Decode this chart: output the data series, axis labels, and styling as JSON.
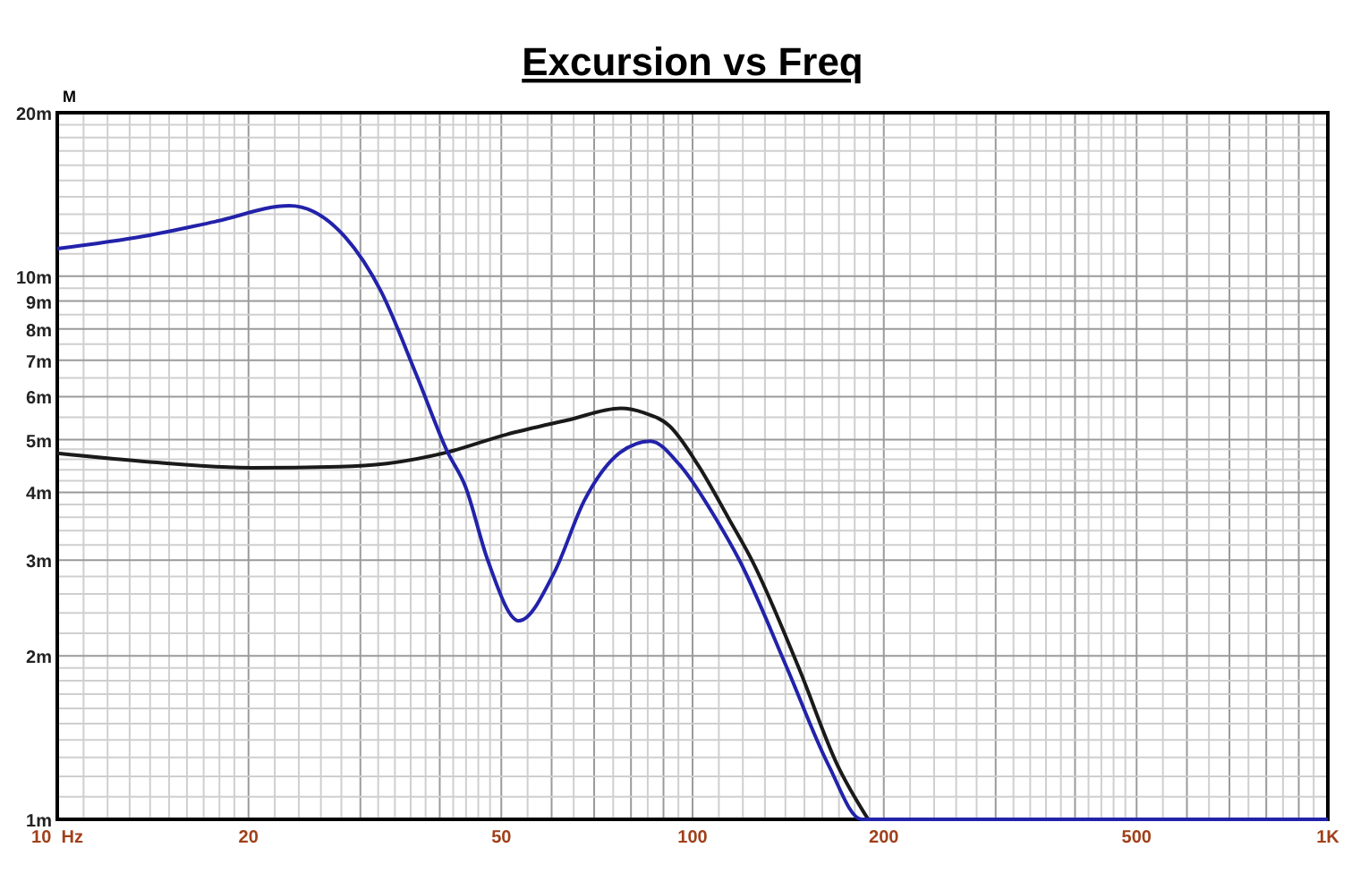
{
  "chart_data": {
    "type": "line",
    "title": "Excursion vs Freq",
    "ylabel": "M",
    "log": "xy",
    "grid": true,
    "line_style": "solid",
    "marker": "none",
    "xlim": [
      10,
      1000
    ],
    "xticks": [
      {
        "value": 10,
        "label": "10  Hz"
      },
      20,
      50,
      100,
      200,
      500,
      {
        "value": 1000,
        "label": "1K"
      }
    ],
    "ylim": [
      1,
      20
    ],
    "yticks": [
      {
        "value": 1,
        "label": "1m"
      },
      {
        "value": 2,
        "label": "2m"
      },
      {
        "value": 3,
        "label": "3m"
      },
      {
        "value": 4,
        "label": "4m"
      },
      {
        "value": 5,
        "label": "5m"
      },
      {
        "value": 6,
        "label": "6m"
      },
      {
        "value": 7,
        "label": "7m"
      },
      {
        "value": 8,
        "label": "8m"
      },
      {
        "value": 9,
        "label": "9m"
      },
      {
        "value": 10,
        "label": "10m"
      },
      {
        "value": 20,
        "label": "20m"
      }
    ],
    "series": [
      {
        "color": "#1a1a1a",
        "x": [
          10,
          14,
          20.2,
          27.8,
          33,
          41.1,
          50.9,
          63.5,
          77.1,
          84,
          92,
          102,
          114,
          124,
          147,
          169,
          189
        ],
        "values": [
          4.72,
          4.55,
          4.44,
          4.46,
          4.52,
          4.74,
          5.11,
          5.43,
          5.71,
          5.6,
          5.3,
          4.49,
          3.58,
          3.0,
          1.9,
          1.26,
          1.0
        ]
      },
      {
        "color": "#2222aa",
        "x": [
          10,
          13.7,
          17.7,
          23.2,
          28.4,
          32.3,
          36.8,
          41.1,
          43.9,
          47.6,
          53.3,
          60.6,
          67.6,
          77,
          85.8,
          95.5,
          108.8,
          118.5,
          140.8,
          163.6,
          184.5,
          300,
          1000
        ],
        "values": [
          11.24,
          11.85,
          12.6,
          13.48,
          11.8,
          9.4,
          6.56,
          4.76,
          4.1,
          3.0,
          2.32,
          2.85,
          3.87,
          4.74,
          4.97,
          4.49,
          3.58,
          3.0,
          1.9,
          1.26,
          1.0,
          1.0,
          1.0
        ]
      }
    ]
  }
}
